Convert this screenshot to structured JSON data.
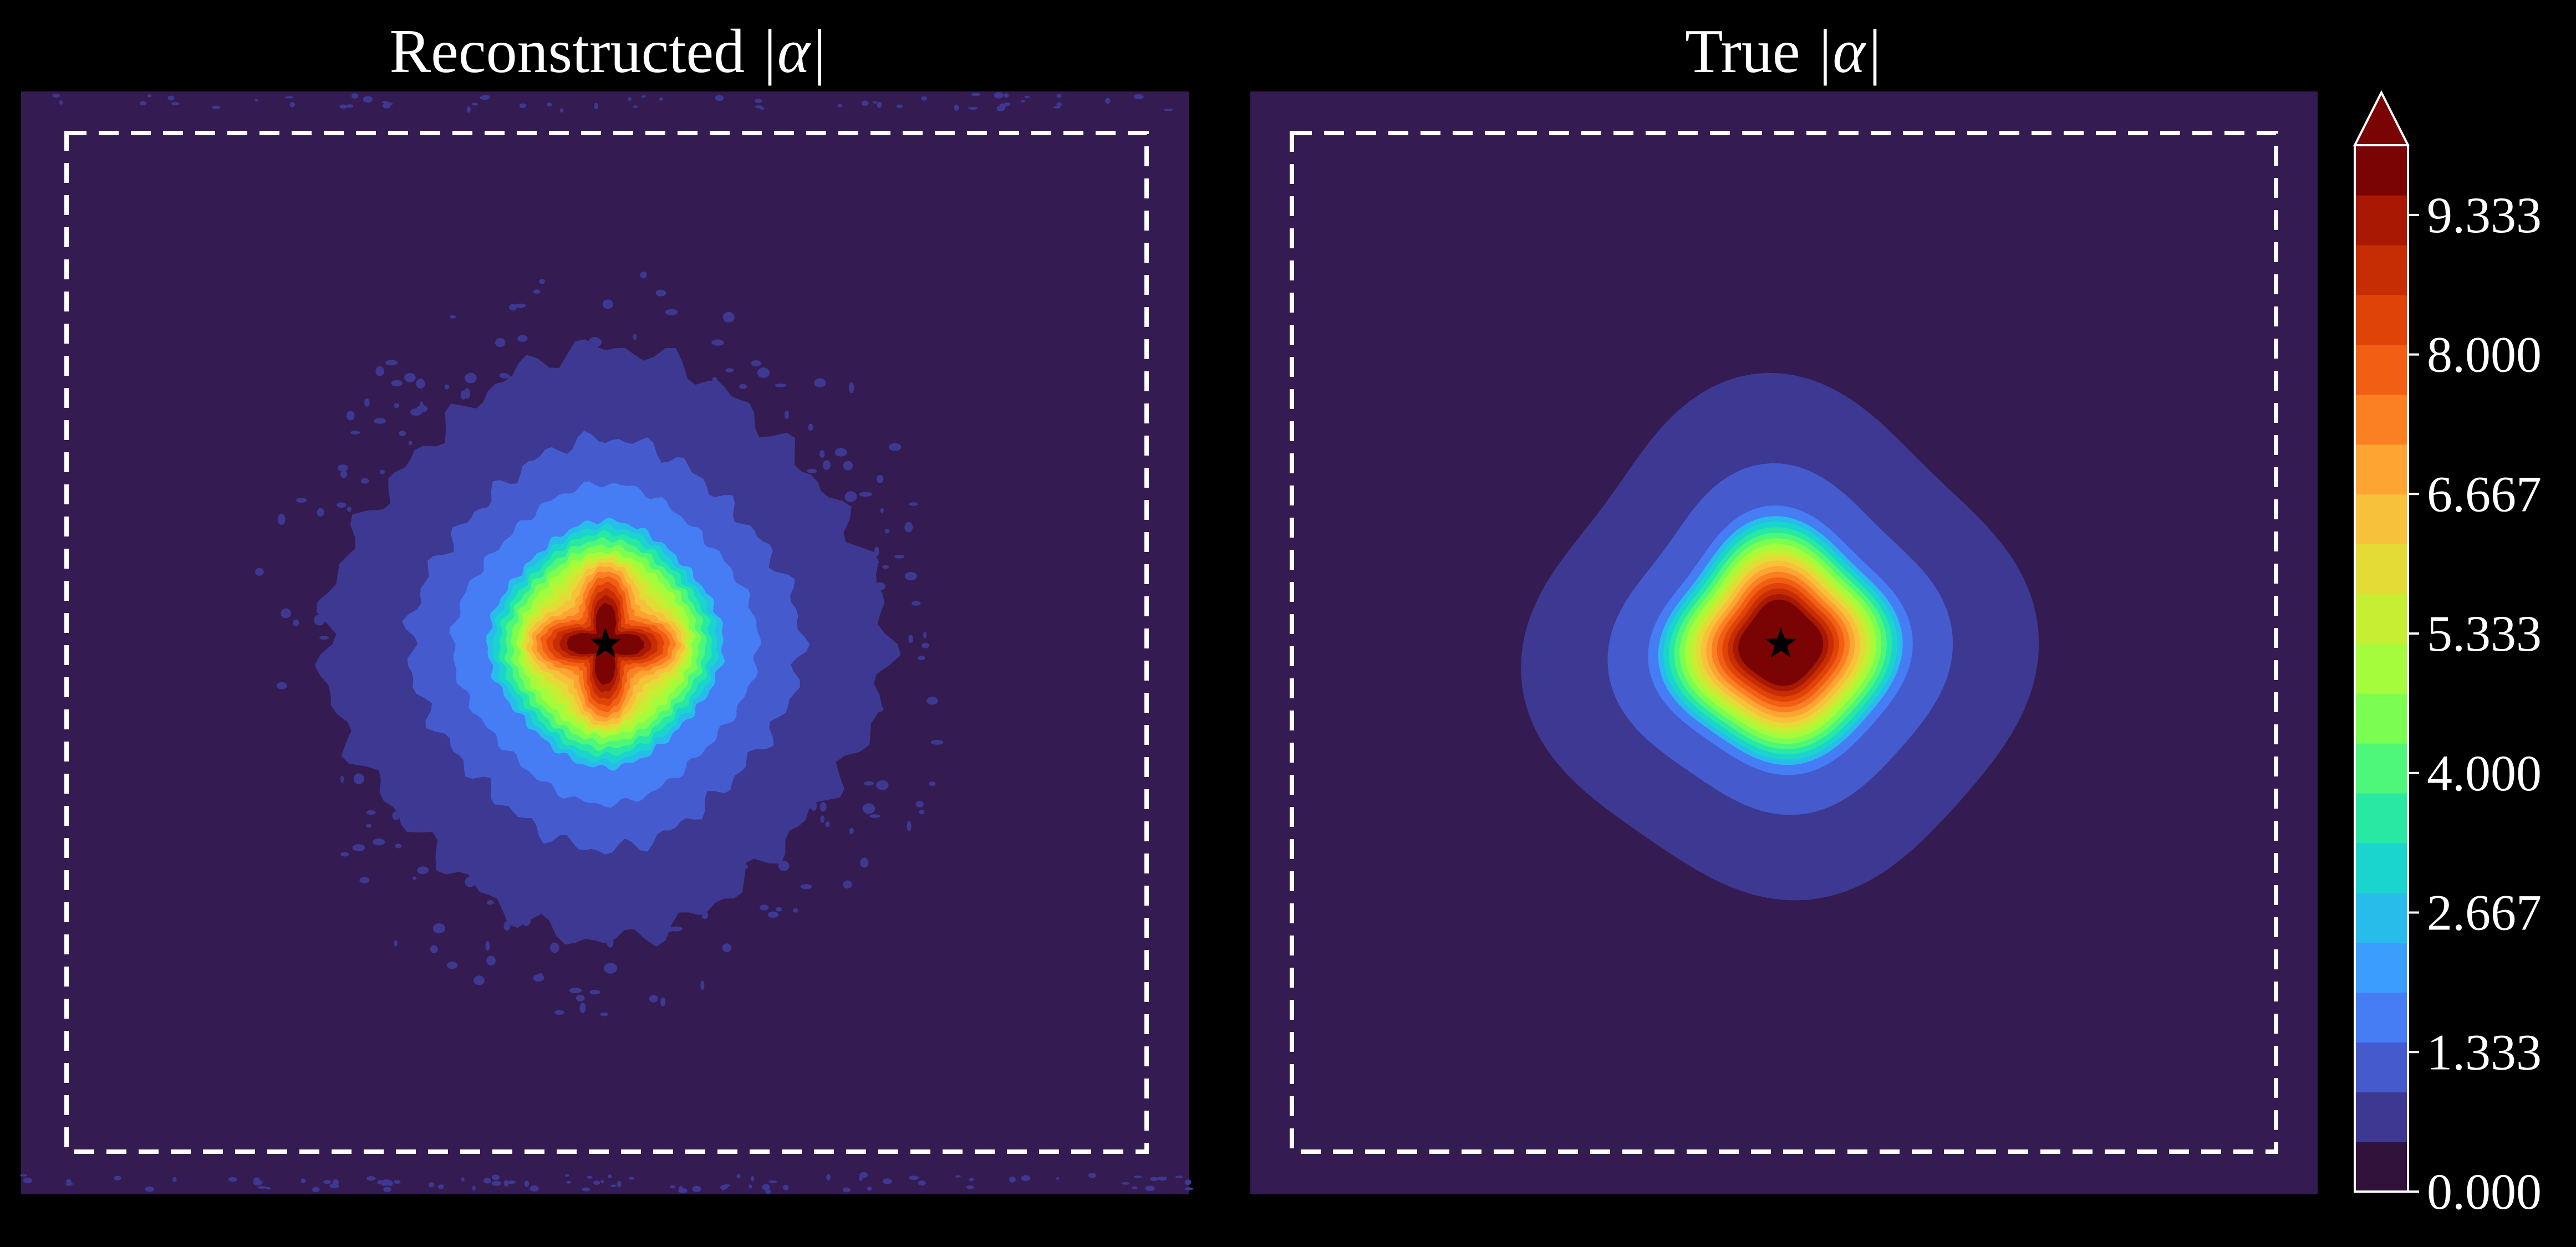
{
  "chart_data": [
    {
      "type": "heatmap",
      "title_prefix": "Reconstructed ",
      "title_math": "|α|",
      "peak_value": 10,
      "peak_shape": "four-lobed, noisy",
      "marker": "star",
      "dashed_box": true,
      "colormap": "turbo"
    },
    {
      "type": "heatmap",
      "title_prefix": "True ",
      "title_math": "|α|",
      "peak_value": 10,
      "peak_shape": "smooth",
      "marker": "star",
      "dashed_box": true,
      "colormap": "turbo"
    }
  ],
  "colorbar": {
    "min": 0,
    "max": 10,
    "levels": 30,
    "extend": "max",
    "ticks": [
      "0.000",
      "1.333",
      "2.667",
      "4.000",
      "5.333",
      "6.667",
      "8.000",
      "9.333"
    ],
    "tick_values": [
      0,
      1.333,
      2.667,
      4.0,
      5.333,
      6.667,
      8.0,
      9.333
    ],
    "colors": [
      "#30123b",
      "#3d3891",
      "#455bcd",
      "#467cf4",
      "#3b9dfd",
      "#28bceb",
      "#1ad5cd",
      "#28e8a4",
      "#4ef77a",
      "#7bfe51",
      "#a4fc3c",
      "#c6ef33",
      "#e4db36",
      "#f7c13a",
      "#fea433",
      "#fb8022",
      "#f25e14",
      "#e04308",
      "#c72d04",
      "#a81802",
      "#7a0403"
    ]
  }
}
